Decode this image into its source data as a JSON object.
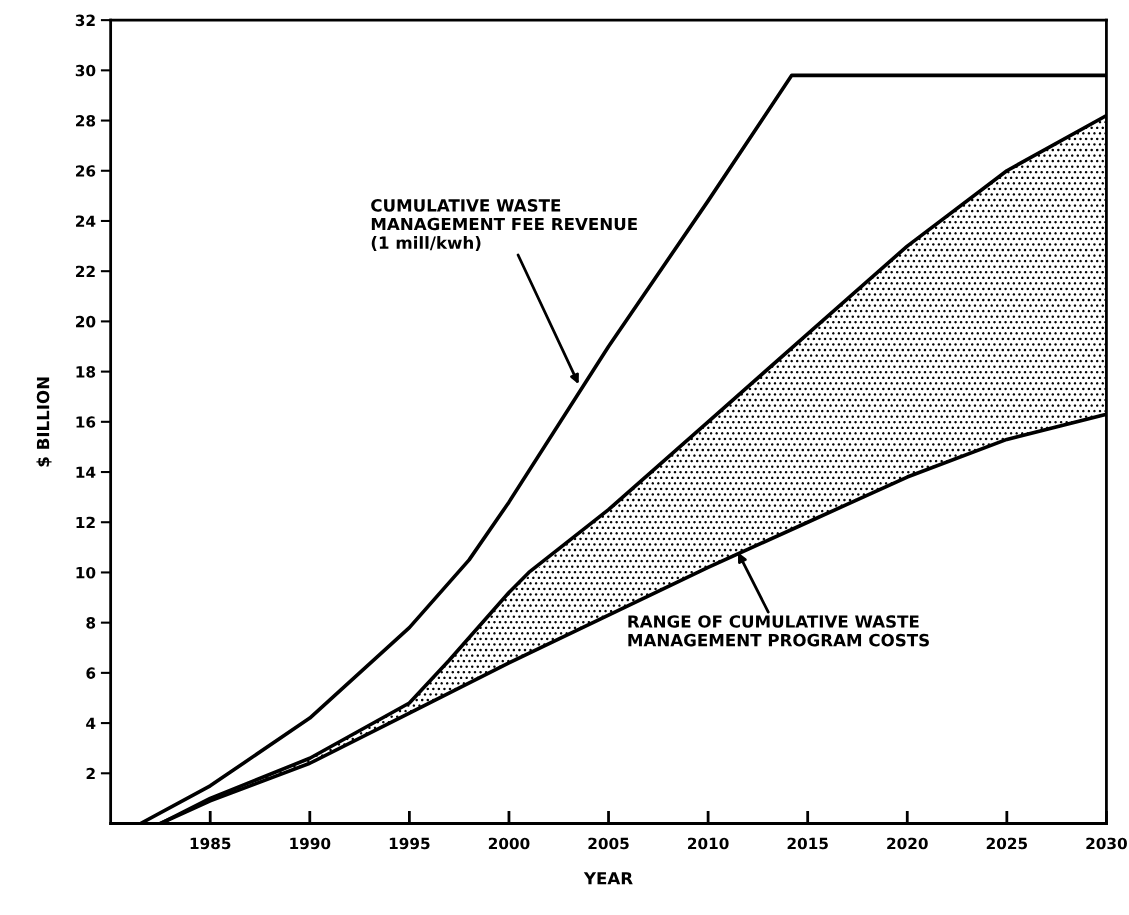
{
  "chart_data": {
    "type": "line",
    "xlabel": "YEAR",
    "ylabel": "$ BILLION",
    "xlim": [
      1980,
      2030
    ],
    "ylim": [
      0,
      32
    ],
    "xticks": [
      1985,
      1990,
      1995,
      2000,
      2005,
      2010,
      2015,
      2020,
      2025,
      2030
    ],
    "yticks": [
      2,
      4,
      6,
      8,
      10,
      12,
      14,
      16,
      18,
      20,
      22,
      24,
      26,
      28,
      30,
      32
    ],
    "grid": false,
    "legend": false,
    "marker": "none",
    "line_style": "solid",
    "series": [
      {
        "color": "#000000",
        "x": [
          1981.5,
          1985,
          1990,
          1995,
          1998,
          2000,
          2005,
          2010,
          2014.2,
          2030
        ],
        "values": [
          0,
          1.5,
          4.2,
          7.8,
          10.5,
          12.8,
          19,
          24.8,
          29.8,
          29.8
        ]
      },
      {
        "color": "#000000",
        "x": [
          1982.5,
          1985,
          1990,
          1995,
          2000,
          2005,
          2010,
          2015,
          2020,
          2025,
          2030
        ],
        "values": [
          0,
          0.9,
          2.4,
          4.4,
          6.4,
          8.3,
          10.2,
          12,
          13.8,
          15.3,
          16.3
        ],
        "lower": [
          0,
          0.9,
          2.4,
          4.4,
          6.4,
          8.3,
          10.2,
          12,
          13.8,
          15.3,
          16.3
        ],
        "upper": [
          0,
          1.0,
          2.6,
          4.8,
          9.2,
          12.5,
          16,
          19.5,
          23,
          26,
          28.2
        ]
      },
      {
        "color": "#000000",
        "x": [
          1982.5,
          1985,
          1990,
          1995,
          1997,
          2000,
          2001,
          2005,
          2010,
          2015,
          2020,
          2025,
          2030
        ],
        "values": [
          0,
          1.0,
          2.6,
          4.8,
          6.5,
          9.2,
          10,
          12.5,
          16,
          19.5,
          23,
          26,
          28.2
        ]
      }
    ],
    "annotations": [
      {
        "text": "CUMULATIVE WASTE\nMANAGEMENT FEE REVENUE\n(1 mill/kwh)",
        "x": 2003.5,
        "y": 17.5
      },
      {
        "text": "RANGE OF CUMULATIVE WASTE\nMANAGEMENT PROGRAM COSTS",
        "x": 2011.5,
        "y": 10.8
      }
    ]
  }
}
